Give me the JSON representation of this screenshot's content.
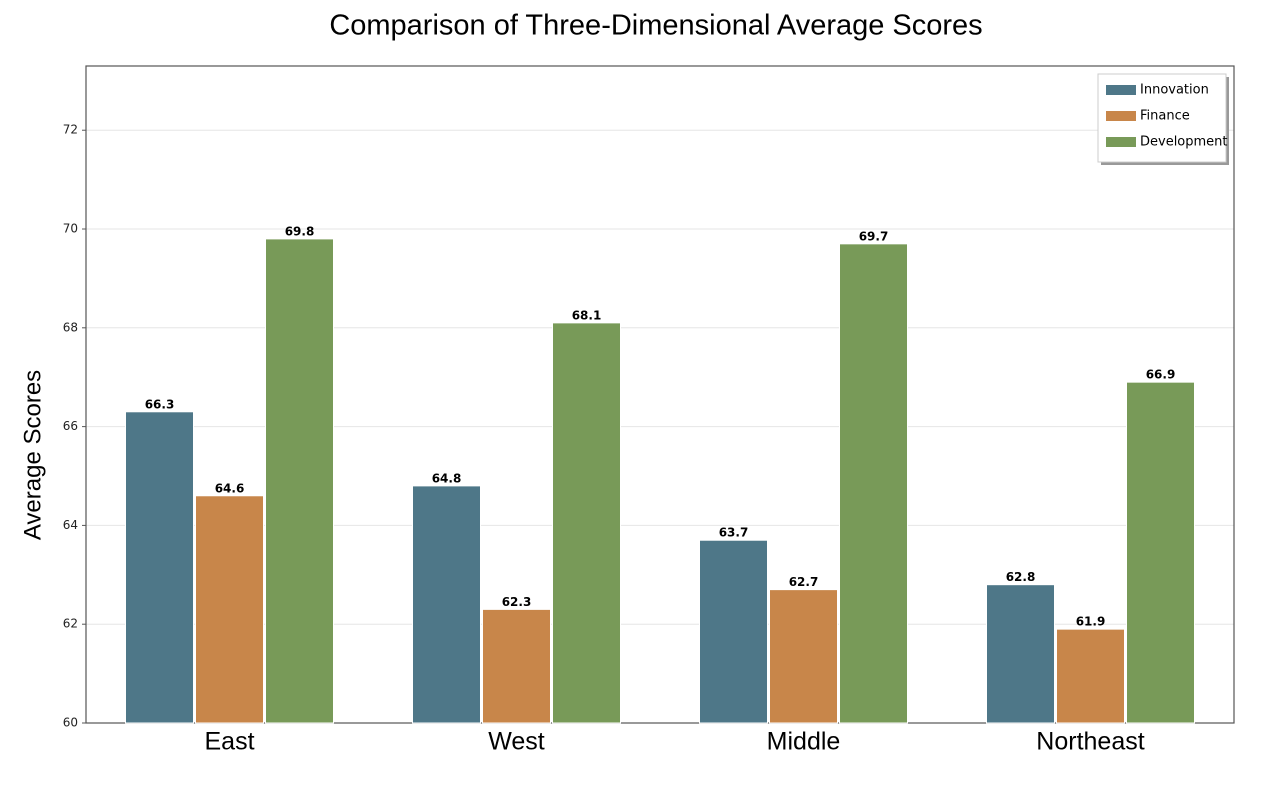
{
  "chart_data": {
    "type": "bar",
    "title": "Comparison of Three-Dimensional Average Scores",
    "y_label": "Average Scores",
    "categories": [
      "East",
      "West",
      "Middle",
      "Northeast"
    ],
    "series": [
      {
        "name": "Innovation",
        "color": "#4e7788",
        "values": [
          66.3,
          64.8,
          63.7,
          62.8
        ]
      },
      {
        "name": "Finance",
        "color": "#c8864a",
        "values": [
          64.6,
          62.3,
          62.7,
          61.9
        ]
      },
      {
        "name": "Development",
        "color": "#789a58",
        "values": [
          69.8,
          68.1,
          69.7,
          66.9
        ]
      }
    ],
    "ylim": [
      60,
      73.3
    ],
    "yticks": [
      60,
      62,
      64,
      66,
      68,
      70,
      72
    ],
    "grid": true,
    "legend": "upper right"
  }
}
